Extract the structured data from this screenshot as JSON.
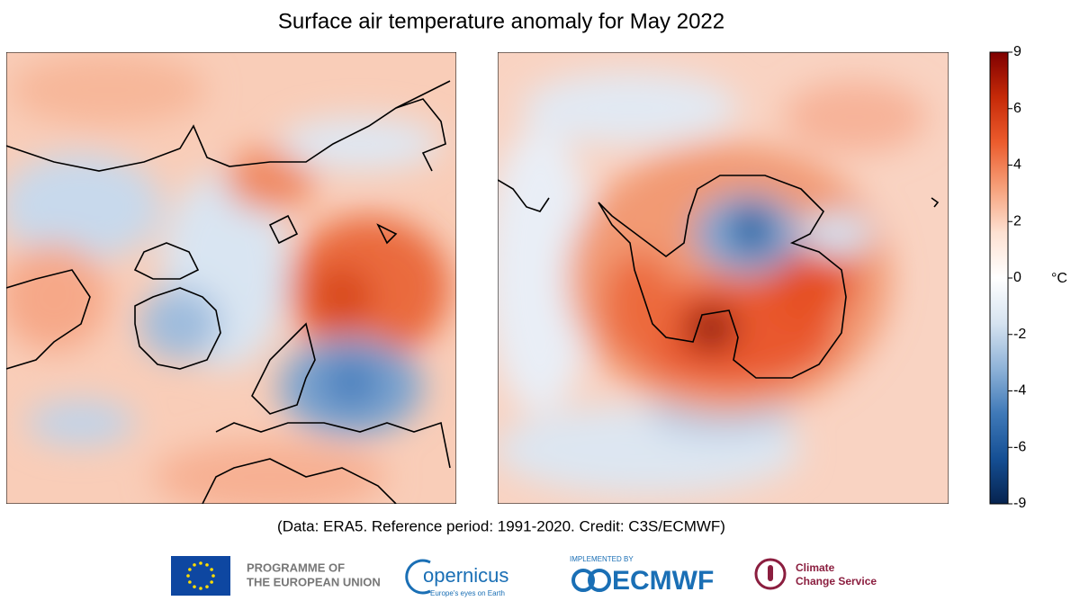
{
  "title": "Surface air temperature anomaly for May 2022",
  "colorbar": {
    "ticks": [
      9,
      6,
      4,
      2,
      0,
      -2,
      -4,
      -6,
      -9
    ],
    "unit": "°C",
    "colors": [
      "#7f0000",
      "#c62a08",
      "#ec5c2d",
      "#f6a07a",
      "#fde1d2",
      "#ffffff",
      "#d6e3f0",
      "#8fb3d8",
      "#3f79b8",
      "#154f94",
      "#06234f"
    ]
  },
  "caption": "(Data: ERA5.  Reference period: 1991-2020.  Credit: C3S/ECMWF)",
  "logos": {
    "eu_line1": "PROGRAMME OF",
    "eu_line2": "THE EUROPEAN UNION",
    "copernicus": "opernicus",
    "copernicus_tagline": "Europe's eyes on Earth",
    "ecmwf_top": "IMPLEMENTED BY",
    "ecmwf": "ECMWF",
    "c3s_line1": "Climate",
    "c3s_line2": "Change Service"
  }
}
